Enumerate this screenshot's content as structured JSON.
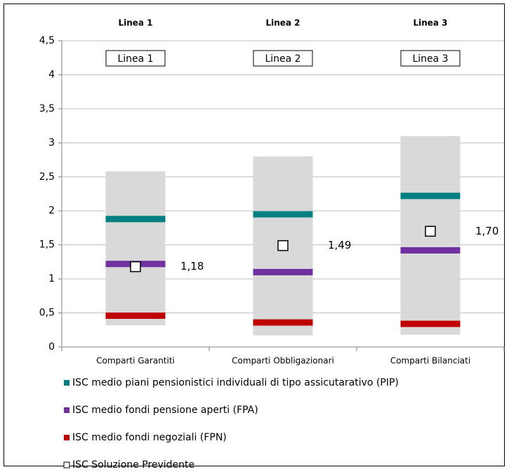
{
  "chart_data": {
    "type": "range",
    "top_labels": [
      "Linea 1",
      "Linea 2",
      "Linea 3"
    ],
    "box_labels": [
      "Linea 1",
      "Linea 2",
      "Linea 3"
    ],
    "categories": [
      "Comparti Garantiti",
      "Comparti Obbligazionari",
      "Comparti Bilanciati"
    ],
    "ranges": {
      "color": "#d9d9d9",
      "low": [
        0.32,
        0.17,
        0.18
      ],
      "high": [
        2.58,
        2.8,
        3.1
      ]
    },
    "series": [
      {
        "name": "ISC medio piani pensionistici individuali di tipo assicutarativo (PIP)",
        "color": "#008080",
        "values": [
          1.88,
          1.95,
          2.22
        ]
      },
      {
        "name": "ISC medio fondi pensione aperti (FPA)",
        "color": "#7030a0",
        "values": [
          1.22,
          1.1,
          1.42
        ]
      },
      {
        "name": "ISC medio fondi negoziali (FPN)",
        "color": "#c00000",
        "values": [
          0.46,
          0.36,
          0.34
        ]
      },
      {
        "name": "ISC Soluzione Previdente",
        "color": "#ffffff",
        "marker": "square",
        "values": [
          1.18,
          1.49,
          1.7
        ],
        "value_labels": [
          "1,18",
          "1,49",
          "1,70"
        ]
      }
    ],
    "ylim": [
      0,
      4.5
    ],
    "yticks": [
      0,
      {
        "value": 0.5,
        "label": "0,5"
      },
      1,
      {
        "value": 1.5,
        "label": "1,5"
      },
      2,
      {
        "value": 2.5,
        "label": "2,5"
      },
      3,
      {
        "value": 3.5,
        "label": "3,5"
      },
      4,
      {
        "value": 4.5,
        "label": "4,5"
      }
    ],
    "grid": true
  }
}
